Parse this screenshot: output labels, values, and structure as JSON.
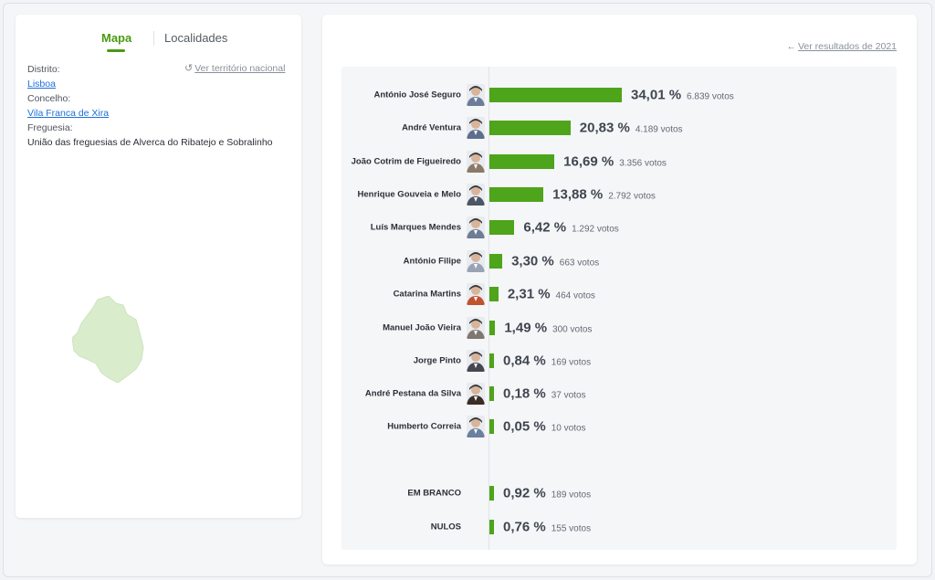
{
  "colors": {
    "accent": "#4a9a12",
    "bar": "#4ea41a",
    "link": "#1d6fd8",
    "map_fill": "#d9eccb"
  },
  "tabs": [
    {
      "label": "Mapa",
      "active": true
    },
    {
      "label": "Localidades",
      "active": false
    }
  ],
  "location": {
    "district_label": "Distrito:",
    "district_value": "Lisboa",
    "municipality_label": "Concelho:",
    "municipality_value": "Vila Franca de Xira",
    "parish_label": "Freguesia:",
    "parish_value": "União das freguesias de Alverca do Ribatejo e Sobralinho",
    "national_link": "Ver território nacional",
    "national_icon": "undo-icon"
  },
  "results": {
    "previous_link": "Ver resultados de 2021",
    "previous_icon": "arrow-left-icon",
    "candidates": [
      {
        "name": "António José Seguro",
        "percent": 34.01,
        "percent_label": "34,01 %",
        "votes_label": "6.839 votos",
        "avatar_color": "#6b7d99"
      },
      {
        "name": "André Ventura",
        "percent": 20.83,
        "percent_label": "20,83 %",
        "votes_label": "4.189 votos",
        "avatar_color": "#5d6e8f"
      },
      {
        "name": "João Cotrim de Figueiredo",
        "percent": 16.69,
        "percent_label": "16,69 %",
        "votes_label": "3.356 votos",
        "avatar_color": "#8b7a6a"
      },
      {
        "name": "Henrique Gouveia e Melo",
        "percent": 13.88,
        "percent_label": "13,88 %",
        "votes_label": "2.792 votos",
        "avatar_color": "#4c5564"
      },
      {
        "name": "Luís Marques Mendes",
        "percent": 6.42,
        "percent_label": "6,42 %",
        "votes_label": "1.292 votos",
        "avatar_color": "#6e7c95"
      },
      {
        "name": "António Filipe",
        "percent": 3.3,
        "percent_label": "3,30 %",
        "votes_label": "663 votos",
        "avatar_color": "#9aa3b5"
      },
      {
        "name": "Catarina Martins",
        "percent": 2.31,
        "percent_label": "2,31 %",
        "votes_label": "464 votos",
        "avatar_color": "#c0522e"
      },
      {
        "name": "Manuel João Vieira",
        "percent": 1.49,
        "percent_label": "1,49 %",
        "votes_label": "300 votos",
        "avatar_color": "#7f7770"
      },
      {
        "name": "Jorge Pinto",
        "percent": 0.84,
        "percent_label": "0,84 %",
        "votes_label": "169 votos",
        "avatar_color": "#45484e"
      },
      {
        "name": "André Pestana da Silva",
        "percent": 0.18,
        "percent_label": "0,18 %",
        "votes_label": "37 votos",
        "avatar_color": "#3b2e27"
      },
      {
        "name": "Humberto Correia",
        "percent": 0.05,
        "percent_label": "0,05 %",
        "votes_label": "10 votos",
        "avatar_color": "#6b7f9e"
      }
    ],
    "others": [
      {
        "name": "EM BRANCO",
        "percent": 0.92,
        "percent_label": "0,92 %",
        "votes_label": "189 votos"
      },
      {
        "name": "NULOS",
        "percent": 0.76,
        "percent_label": "0,76 %",
        "votes_label": "155 votos"
      }
    ]
  }
}
